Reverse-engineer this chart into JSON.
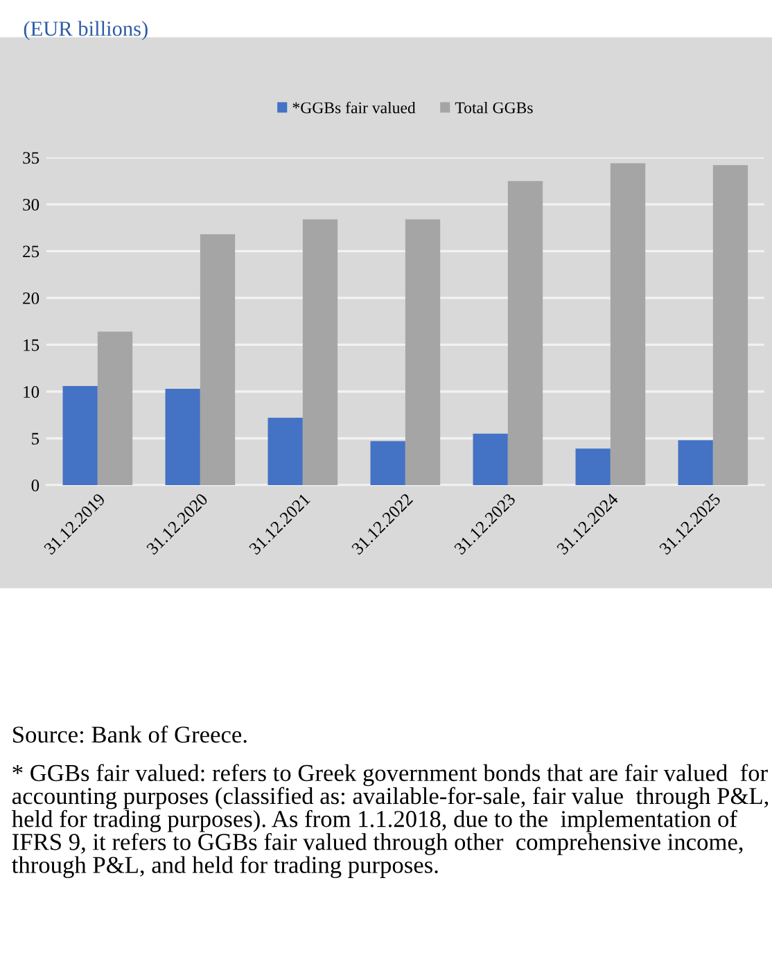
{
  "chart_data": {
    "type": "bar",
    "title": "(EUR billions)",
    "categories": [
      "31.12.2019",
      "31.12.2020",
      "31.12.2021",
      "31.12.2022",
      "31.12.2023",
      "31.12.2024",
      "31.12.2025"
    ],
    "series": [
      {
        "name": "*GGBs fair valued",
        "color": "#4472c4",
        "values": [
          10.6,
          10.3,
          7.2,
          4.7,
          5.5,
          3.9,
          4.8
        ]
      },
      {
        "name": "Total GGBs",
        "color": "#a5a5a5",
        "values": [
          16.4,
          26.8,
          28.4,
          28.4,
          32.5,
          34.4,
          34.2
        ]
      }
    ],
    "ylim": [
      0,
      35
    ],
    "yticks": [
      0,
      5,
      10,
      15,
      20,
      25,
      30,
      35
    ],
    "grid": "y",
    "legend": "top",
    "annotations": [
      "Source: Bank of Greece.",
      "* GGBs fair valued: refers to Greek government bonds that are fair valued  for accounting purposes (classified as: available-for-sale, fair value  through P&L, held for trading purposes). As from 1.1.2018, due to the  implementation of IFRS 9, it refers to GGBs fair valued through other  comprehensive income, through P&L, and held for trading purposes."
    ]
  }
}
